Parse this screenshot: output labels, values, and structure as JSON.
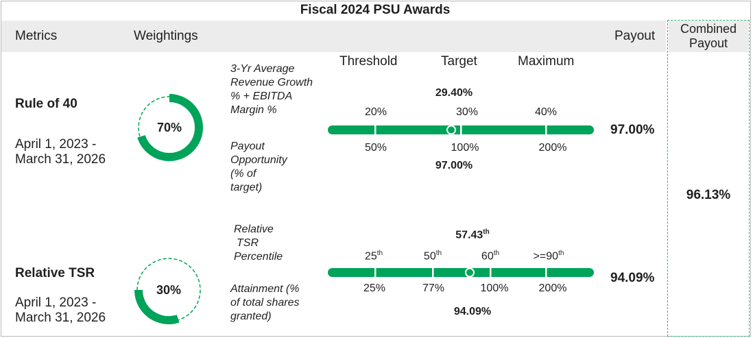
{
  "title": "Fiscal 2024 PSU Awards",
  "header": {
    "metrics": "Metrics",
    "weightings": "Weightings",
    "payout": "Payout",
    "combined_line1": "Combined",
    "combined_line2": "Payout"
  },
  "levels": {
    "threshold": "Threshold",
    "target": "Target",
    "maximum": "Maximum"
  },
  "combined_payout": "96.13%",
  "colors": {
    "accent": "#00a35a",
    "header_bg": "#ececec"
  },
  "rule40": {
    "name": "Rule of 40",
    "period_line1": "April 1, 2023 -",
    "period_line2": "March 31, 2026",
    "weight_label": "70%",
    "weight_fraction": 0.7,
    "metric_line1": "3-Yr Average",
    "metric_line2": "Revenue Growth",
    "metric_line3": "% + EBITDA",
    "metric_line4": "Margin %",
    "opp_line1": "Payout",
    "opp_line2": "Opportunity",
    "opp_line3": "(% of",
    "opp_line4": "target)",
    "actual_value": "29.40%",
    "actual_numeric": 29.4,
    "ticks_top": [
      "20%",
      "30%",
      "40%"
    ],
    "ticks_bottom": [
      "50%",
      "100%",
      "200%"
    ],
    "payout_value": "97.00%",
    "row_payout": "97.00%"
  },
  "tsr": {
    "name": "Relative TSR",
    "period_line1": "April 1, 2023 -",
    "period_line2": "March 31, 2026",
    "weight_label": "30%",
    "weight_fraction": 0.3,
    "metric_line1": "Relative",
    "metric_line2": "TSR",
    "metric_line3": "Percentile",
    "att_line1": "Attainment (%",
    "att_line2": "of total shares",
    "att_line3": "granted)",
    "actual_value": "57.43",
    "actual_sup": "th",
    "actual_numeric": 57.43,
    "ticks_top": [
      {
        "v": "25",
        "s": "th"
      },
      {
        "v": "50",
        "s": "th"
      },
      {
        "v": "60",
        "s": "th"
      },
      {
        "v": ">=90",
        "s": "th"
      }
    ],
    "ticks_bottom": [
      "25%",
      "77%",
      "100%",
      "200%"
    ],
    "attainment_value": "94.09%",
    "row_payout": "94.09%"
  }
}
